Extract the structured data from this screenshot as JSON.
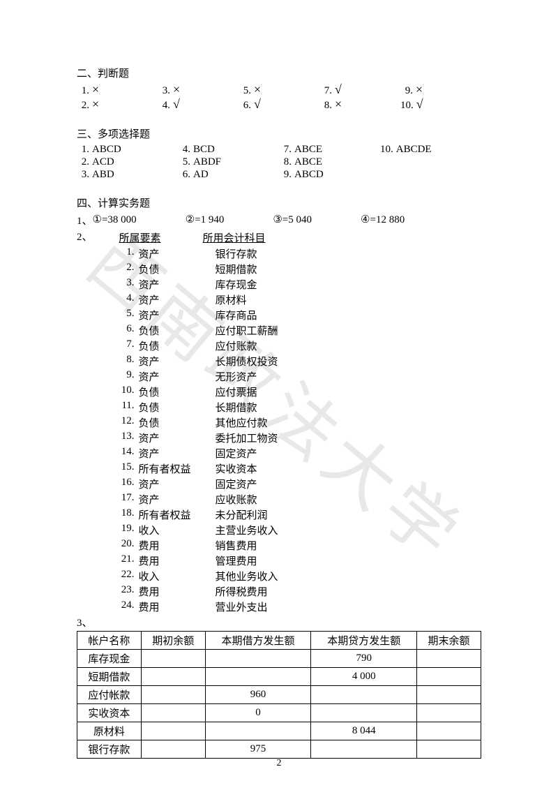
{
  "watermark": "西南政法大学",
  "page_number": "2",
  "section2": {
    "title": "二、判断题",
    "items": [
      {
        "n": "1.",
        "v": "×"
      },
      {
        "n": "3.",
        "v": "×"
      },
      {
        "n": "5.",
        "v": "×"
      },
      {
        "n": "7.",
        "v": "√"
      },
      {
        "n": "9.",
        "v": "×"
      },
      {
        "n": "2.",
        "v": "×"
      },
      {
        "n": "4.",
        "v": "√"
      },
      {
        "n": "6.",
        "v": "√"
      },
      {
        "n": "8.",
        "v": "×"
      },
      {
        "n": "10.",
        "v": "√"
      }
    ]
  },
  "section3": {
    "title": "三、多项选择题",
    "items": [
      {
        "n": "1.",
        "v": "ABCD"
      },
      {
        "n": "4.",
        "v": "BCD"
      },
      {
        "n": "7.",
        "v": "ABCE"
      },
      {
        "n": "10.",
        "v": "ABCDE"
      },
      {
        "n": "2.",
        "v": "ACD"
      },
      {
        "n": "5.",
        "v": "ABDF"
      },
      {
        "n": "8.",
        "v": "ABCE"
      },
      {
        "n": "",
        "v": ""
      },
      {
        "n": "3.",
        "v": "ABD"
      },
      {
        "n": "6.",
        "v": "AD"
      },
      {
        "n": "9.",
        "v": "ABCD"
      },
      {
        "n": "",
        "v": ""
      }
    ]
  },
  "section4": {
    "title": "四、计算实务题",
    "q1": {
      "prefix": "1、",
      "parts": [
        "①=38 000",
        "②=1 940",
        "③=5 040",
        "④=12 880"
      ]
    },
    "q2": {
      "prefix": "2、",
      "header1": "所属要素",
      "header2": "所用会计科目",
      "rows": [
        {
          "n": "1.",
          "a": "资产",
          "b": "银行存款"
        },
        {
          "n": "2.",
          "a": "负债",
          "b": "短期借款"
        },
        {
          "n": "3.",
          "a": "资产",
          "b": "库存现金"
        },
        {
          "n": "4.",
          "a": "资产",
          "b": "原材料"
        },
        {
          "n": "5.",
          "a": "资产",
          "b": "库存商品"
        },
        {
          "n": "6.",
          "a": "负债",
          "b": "应付职工薪酬"
        },
        {
          "n": "7.",
          "a": "负债",
          "b": "应付账款"
        },
        {
          "n": "8.",
          "a": "资产",
          "b": "长期债权投资"
        },
        {
          "n": "9.",
          "a": "资产",
          "b": "无形资产"
        },
        {
          "n": "10.",
          "a": "负债",
          "b": "应付票据"
        },
        {
          "n": "11.",
          "a": "负债",
          "b": "长期借款"
        },
        {
          "n": "12.",
          "a": "负债",
          "b": "其他应付款"
        },
        {
          "n": "13.",
          "a": "资产",
          "b": "委托加工物资"
        },
        {
          "n": "14.",
          "a": "资产",
          "b": "固定资产"
        },
        {
          "n": "15.",
          "a": "所有者权益",
          "b": "实收资本"
        },
        {
          "n": "16.",
          "a": "资产",
          "b": "固定资产"
        },
        {
          "n": "17.",
          "a": "资产",
          "b": "应收账款"
        },
        {
          "n": "18.",
          "a": "所有者权益",
          "b": "未分配利润"
        },
        {
          "n": "19.",
          "a": "收入",
          "b": "主营业务收入"
        },
        {
          "n": "20.",
          "a": "费用",
          "b": "销售费用"
        },
        {
          "n": "21.",
          "a": "费用",
          "b": "管理费用"
        },
        {
          "n": "22.",
          "a": "收入",
          "b": "其他业务收入"
        },
        {
          "n": "23.",
          "a": "费用",
          "b": "所得税费用"
        },
        {
          "n": "24.",
          "a": "费用",
          "b": "营业外支出"
        }
      ]
    },
    "q3": {
      "prefix": "3、",
      "columns": [
        "帐户名称",
        "期初余额",
        "本期借方发生额",
        "本期贷方发生额",
        "期末余额"
      ],
      "rows": [
        [
          "库存现金",
          "",
          "",
          "790",
          ""
        ],
        [
          "短期借款",
          "",
          "",
          "4  000",
          ""
        ],
        [
          "应付帐款",
          "",
          "960",
          "",
          ""
        ],
        [
          "实收资本",
          "",
          "0",
          "",
          ""
        ],
        [
          "原材料",
          "",
          "",
          "8 044",
          ""
        ],
        [
          "银行存款",
          "",
          "975",
          "",
          ""
        ]
      ]
    }
  }
}
